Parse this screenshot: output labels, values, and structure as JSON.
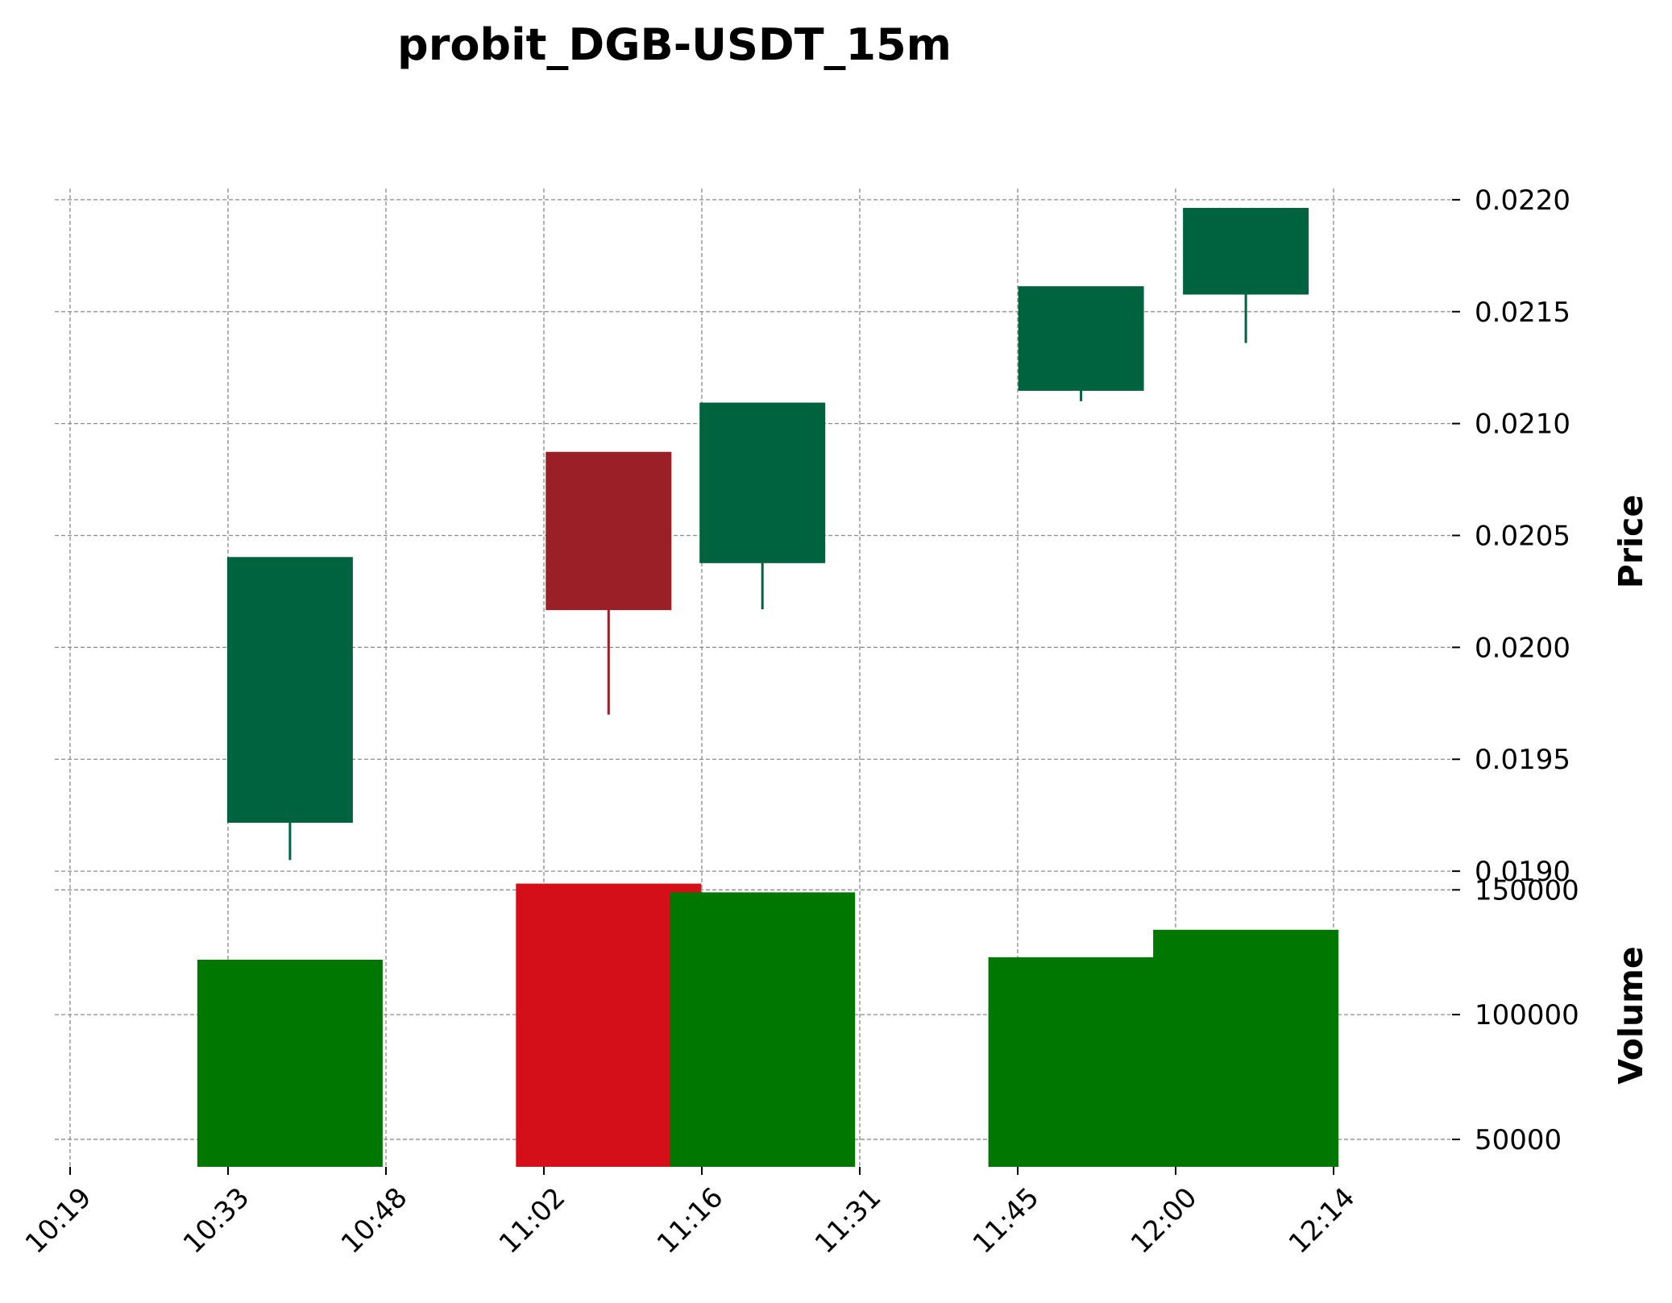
{
  "chart_data": {
    "type": "candlestick",
    "title": "probit_DGB-USDT_15m",
    "x_tick_labels": [
      "10:19",
      "10:33",
      "10:48",
      "11:02",
      "11:16",
      "11:31",
      "11:45",
      "12:00",
      "12:14"
    ],
    "price_axis": {
      "label": "Price",
      "ylim": [
        0.01895,
        0.02205
      ],
      "ticks": [
        0.022,
        0.0215,
        0.021,
        0.0205,
        0.02,
        0.0195,
        0.019
      ],
      "tick_labels": [
        "0.0220",
        "0.0215",
        "0.0210",
        "0.0205",
        "0.0200",
        "0.0195",
        "0.0190"
      ]
    },
    "volume_axis": {
      "label": "Volume",
      "ylim": [
        39000,
        153000
      ],
      "ticks": [
        150000,
        100000,
        50000
      ],
      "tick_labels": [
        "150000",
        "100000",
        "50000"
      ]
    },
    "candles": [
      {
        "time": "10:33",
        "open": 0.01922,
        "high": 0.0204,
        "low": 0.01905,
        "close": 0.0204,
        "volume": 122000,
        "direction": "up"
      },
      {
        "time": "11:02",
        "open": 0.02087,
        "high": 0.02087,
        "low": 0.0197,
        "close": 0.02017,
        "volume": 152500,
        "direction": "down"
      },
      {
        "time": "11:16",
        "open": 0.02038,
        "high": 0.02109,
        "low": 0.02017,
        "close": 0.02109,
        "volume": 149000,
        "direction": "up"
      },
      {
        "time": "11:45",
        "open": 0.02115,
        "high": 0.02161,
        "low": 0.0211,
        "close": 0.02161,
        "volume": 123000,
        "direction": "up"
      },
      {
        "time": "12:00",
        "open": 0.02158,
        "high": 0.02196,
        "low": 0.02136,
        "close": 0.02196,
        "volume": 134000,
        "direction": "up"
      }
    ],
    "colors": {
      "candle_up": "#006340",
      "candle_down": "#9a1f27",
      "volume_up": "#007800",
      "volume_down": "#d40f1a",
      "grid": "#8c8c8c"
    },
    "grid": true,
    "grid_style": "dashed"
  }
}
